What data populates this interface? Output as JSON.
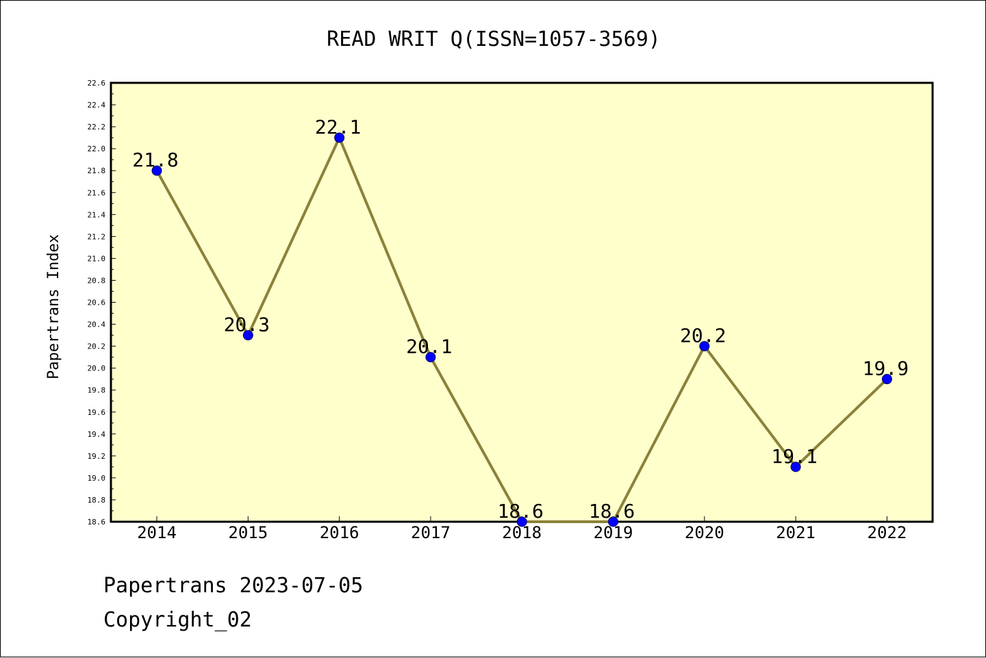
{
  "chart_data": {
    "type": "line",
    "title": "READ WRIT Q(ISSN=1057-3569)",
    "xlabel": "",
    "ylabel": "Papertrans Index",
    "categories": [
      "2014",
      "2015",
      "2016",
      "2017",
      "2018",
      "2019",
      "2020",
      "2021",
      "2022"
    ],
    "series": [
      {
        "values": [
          21.8,
          20.3,
          22.1,
          20.1,
          18.6,
          18.6,
          20.2,
          19.1,
          19.9
        ],
        "labels": [
          "21.8",
          "20.3",
          "22.1",
          "20.1",
          "18.6",
          "18.6",
          "20.2",
          "19.1",
          "19.9"
        ]
      }
    ],
    "ylim": [
      18.6,
      22.6
    ],
    "y_ticks": [
      "18.6",
      "18.8",
      "19.0",
      "19.2",
      "19.4",
      "19.6",
      "19.8",
      "20.0",
      "20.2",
      "20.4",
      "20.6",
      "20.8",
      "21.0",
      "21.2",
      "21.4",
      "21.6",
      "21.8",
      "22.0",
      "22.2",
      "22.4",
      "22.6"
    ],
    "grid": false,
    "legend": "none",
    "colors": {
      "plot_background": "#ffffcc",
      "line": "#8b8139",
      "marker_fill": "#0000ff",
      "marker_edge": "#000066",
      "axis": "#000000"
    }
  },
  "footer": {
    "line1": "Papertrans 2023-07-05",
    "line2": "Copyright_02"
  }
}
